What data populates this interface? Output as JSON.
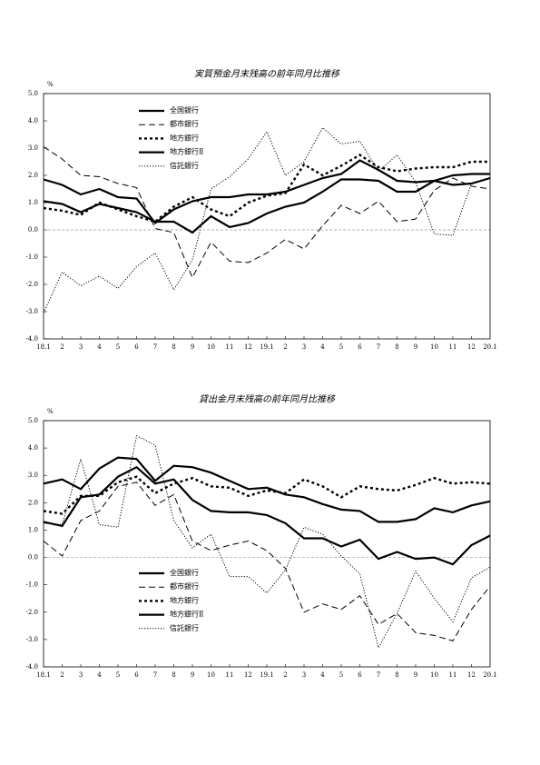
{
  "chart_data": [
    {
      "type": "line",
      "title": "実質預金月末残高の前年同月比推移",
      "y_unit": "%",
      "categories": [
        "18.1",
        "2",
        "3",
        "4",
        "5",
        "6",
        "7",
        "8",
        "9",
        "10",
        "11",
        "12",
        "19.1",
        "2",
        "3",
        "4",
        "5",
        "6",
        "7",
        "8",
        "9",
        "10",
        "11",
        "12",
        "20.1"
      ],
      "ylim": [
        -4,
        5
      ],
      "yticks": [
        {
          "value": 5,
          "label": "5.0"
        },
        {
          "value": 4,
          "label": "4.0"
        },
        {
          "value": 3,
          "label": "3.0"
        },
        {
          "value": 2,
          "label": "2.0"
        },
        {
          "value": 1,
          "label": "1.0"
        },
        {
          "value": 0,
          "label": "0.0"
        },
        {
          "value": -1,
          "label": "-1.0"
        },
        {
          "value": -2,
          "label": "-2.0"
        },
        {
          "value": -3,
          "label": "-3.0"
        },
        {
          "value": -4,
          "label": "-4.0"
        }
      ],
      "legend": "upper left",
      "series": [
        {
          "name": "全国銀行",
          "color": "#000000",
          "linestyle": "solid",
          "linewidth": 2.2,
          "values": [
            1.85,
            1.65,
            1.3,
            1.5,
            1.2,
            1.15,
            0.25,
            0.75,
            1.05,
            1.2,
            1.2,
            1.3,
            1.3,
            1.4,
            1.65,
            1.9,
            2.05,
            2.55,
            2.2,
            1.8,
            1.75,
            1.8,
            1.65,
            1.7,
            1.9
          ]
        },
        {
          "name": "都市銀行",
          "color": "#000000",
          "linestyle": "dashed",
          "linewidth": 1,
          "values": [
            3.05,
            2.6,
            2.0,
            1.95,
            1.7,
            1.55,
            0.05,
            -0.1,
            -1.75,
            -0.45,
            -1.15,
            -1.2,
            -0.85,
            -0.35,
            -0.7,
            0.15,
            0.9,
            0.6,
            1.05,
            0.3,
            0.4,
            1.45,
            1.9,
            1.6,
            1.5
          ]
        },
        {
          "name": "地方銀行",
          "color": "#000000",
          "linestyle": "dotted",
          "linewidth": 2.4,
          "values": [
            0.8,
            0.7,
            0.55,
            1.0,
            0.75,
            0.5,
            0.3,
            0.85,
            1.2,
            0.75,
            0.5,
            1.0,
            1.25,
            1.35,
            2.4,
            2.0,
            2.35,
            2.75,
            2.3,
            2.15,
            2.25,
            2.3,
            2.3,
            2.5,
            2.5
          ]
        },
        {
          "name": "地方銀行Ⅱ",
          "color": "#000000",
          "linestyle": "solid",
          "linewidth": 2.2,
          "values": [
            1.05,
            0.95,
            0.65,
            0.95,
            0.8,
            0.65,
            0.3,
            0.3,
            -0.1,
            0.5,
            0.1,
            0.25,
            0.6,
            0.85,
            1.0,
            1.4,
            1.85,
            1.85,
            1.8,
            1.4,
            1.4,
            1.8,
            2.0,
            2.05,
            2.05
          ]
        },
        {
          "name": "信託銀行",
          "color": "#000000",
          "linestyle": "dotted",
          "linewidth": 1,
          "values": [
            -3.05,
            -1.55,
            -2.05,
            -1.7,
            -2.15,
            -1.35,
            -0.85,
            -2.2,
            -1.1,
            1.5,
            1.95,
            2.6,
            3.6,
            2.0,
            2.5,
            3.75,
            3.15,
            3.25,
            2.15,
            2.75,
            1.75,
            -0.15,
            -0.2,
            1.7,
            1.9
          ]
        }
      ]
    },
    {
      "type": "line",
      "title": "貸出金月末残高の前年同月比推移",
      "y_unit": "%",
      "categories": [
        "18.1",
        "2",
        "3",
        "4",
        "5",
        "6",
        "7",
        "8",
        "9",
        "10",
        "11",
        "12",
        "19.1",
        "2",
        "3",
        "4",
        "5",
        "6",
        "7",
        "8",
        "9",
        "10",
        "11",
        "12",
        "20.1"
      ],
      "ylim": [
        -4,
        5
      ],
      "yticks": [
        {
          "value": 5,
          "label": "5.0"
        },
        {
          "value": 4,
          "label": "4.0"
        },
        {
          "value": 3,
          "label": "3.0"
        },
        {
          "value": 2,
          "label": "2.0"
        },
        {
          "value": 1,
          "label": "1.0"
        },
        {
          "value": 0,
          "label": "0.0"
        },
        {
          "value": -1,
          "label": "-1.0"
        },
        {
          "value": -2,
          "label": "-2.0"
        },
        {
          "value": -3,
          "label": "-3.0"
        },
        {
          "value": -4,
          "label": "-4.0"
        }
      ],
      "legend": "lower left",
      "series": [
        {
          "name": "全国銀行",
          "color": "#000000",
          "linestyle": "solid",
          "linewidth": 2.2,
          "values": [
            2.7,
            2.85,
            2.5,
            3.25,
            3.65,
            3.6,
            2.8,
            3.35,
            3.3,
            3.1,
            2.8,
            2.5,
            2.55,
            2.3,
            2.2,
            1.95,
            1.75,
            1.7,
            1.3,
            1.3,
            1.4,
            1.8,
            1.65,
            1.9,
            2.05
          ]
        },
        {
          "name": "都市銀行",
          "color": "#000000",
          "linestyle": "dashed",
          "linewidth": 1,
          "values": [
            0.6,
            0.05,
            1.35,
            1.7,
            2.6,
            2.75,
            1.9,
            2.3,
            0.6,
            0.25,
            0.45,
            0.6,
            0.25,
            -0.4,
            -2.0,
            -1.7,
            -1.9,
            -1.4,
            -2.45,
            -2.05,
            -2.75,
            -2.85,
            -3.05,
            -1.9,
            -1.05
          ]
        },
        {
          "name": "地方銀行",
          "color": "#000000",
          "linestyle": "dotted",
          "linewidth": 2.4,
          "values": [
            1.7,
            1.6,
            2.25,
            2.25,
            2.75,
            2.95,
            2.35,
            2.7,
            2.9,
            2.6,
            2.55,
            2.25,
            2.45,
            2.35,
            2.85,
            2.6,
            2.2,
            2.6,
            2.5,
            2.45,
            2.65,
            2.9,
            2.7,
            2.75,
            2.7
          ]
        },
        {
          "name": "地方銀行Ⅱ",
          "color": "#000000",
          "linestyle": "solid",
          "linewidth": 2.2,
          "values": [
            1.3,
            1.15,
            2.2,
            2.3,
            2.95,
            3.3,
            2.7,
            2.85,
            2.1,
            1.7,
            1.65,
            1.65,
            1.55,
            1.25,
            0.7,
            0.7,
            0.4,
            0.65,
            -0.05,
            0.2,
            -0.05,
            0.0,
            -0.25,
            0.45,
            0.8
          ]
        },
        {
          "name": "信託銀行",
          "color": "#000000",
          "linestyle": "dotted",
          "linewidth": 1,
          "values": [
            1.25,
            1.2,
            3.6,
            1.2,
            1.1,
            4.45,
            4.1,
            1.35,
            0.35,
            0.85,
            -0.7,
            -0.7,
            -1.3,
            -0.45,
            1.1,
            0.85,
            0.05,
            -0.6,
            -3.3,
            -2.05,
            -0.5,
            -1.5,
            -2.35,
            -0.75,
            -0.35
          ]
        }
      ]
    }
  ]
}
